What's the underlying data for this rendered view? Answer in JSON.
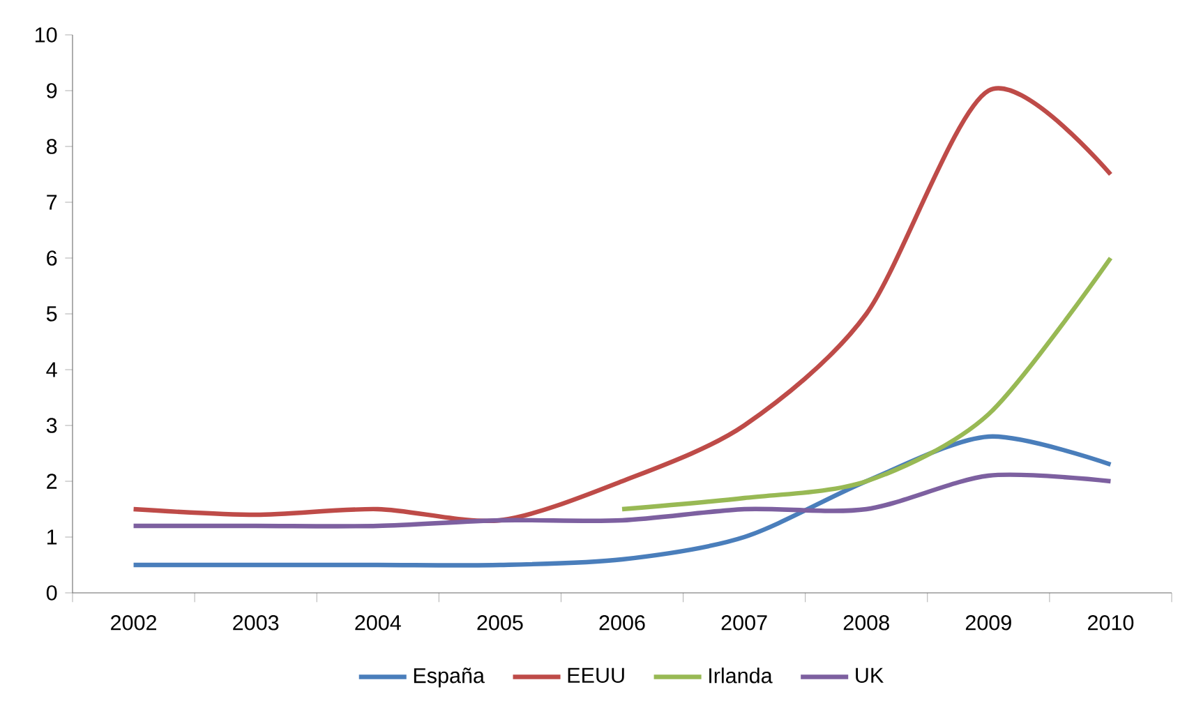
{
  "chart_data": {
    "type": "line",
    "categories": [
      "2002",
      "2003",
      "2004",
      "2005",
      "2006",
      "2007",
      "2008",
      "2009",
      "2010"
    ],
    "series": [
      {
        "name": "España",
        "color": "#4a7ebb",
        "values": [
          0.5,
          0.5,
          0.5,
          0.5,
          0.6,
          1.0,
          2.0,
          2.8,
          2.3
        ]
      },
      {
        "name": "EEUU",
        "color": "#be4b48",
        "values": [
          1.5,
          1.4,
          1.5,
          1.3,
          2.0,
          3.0,
          5.0,
          9.0,
          7.5
        ]
      },
      {
        "name": "Irlanda",
        "color": "#98b954",
        "values": [
          null,
          null,
          null,
          null,
          1.5,
          1.7,
          2.0,
          3.2,
          6.0
        ]
      },
      {
        "name": "UK",
        "color": "#7d60a0",
        "values": [
          1.2,
          1.2,
          1.2,
          1.3,
          1.3,
          1.5,
          1.5,
          2.1,
          2.0
        ]
      }
    ],
    "ylim": [
      0,
      10
    ],
    "yticks": [
      0,
      1,
      2,
      3,
      4,
      5,
      6,
      7,
      8,
      9,
      10
    ],
    "grid": false,
    "legend": "bottom",
    "marker": "none",
    "line_style": "solid"
  }
}
